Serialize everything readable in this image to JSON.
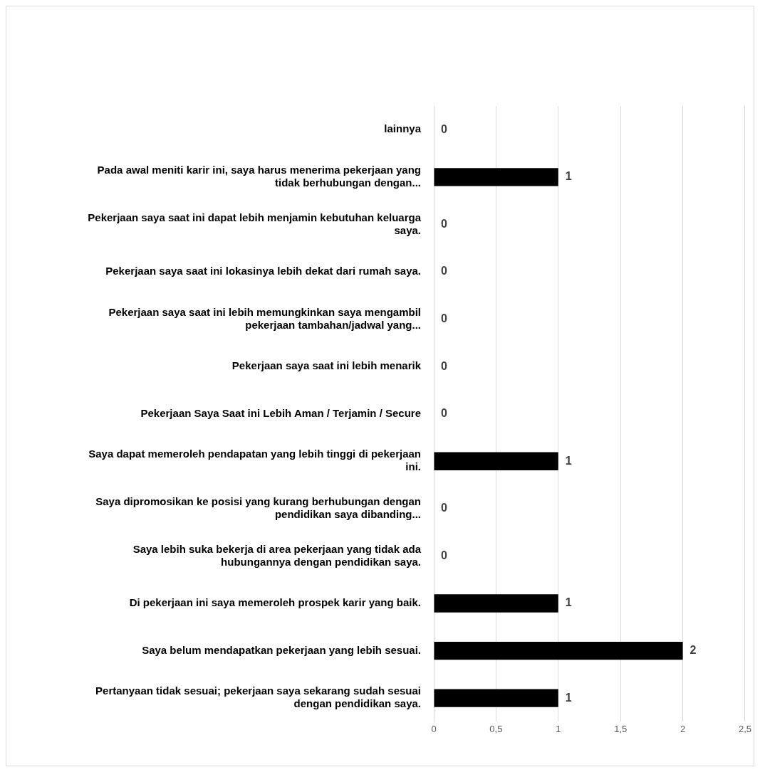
{
  "chart_data": {
    "type": "bar",
    "orientation": "horizontal",
    "categories": [
      "lainnya",
      "Pada awal meniti karir ini, saya harus menerima pekerjaan yang tidak berhubungan dengan...",
      "Pekerjaan saya saat ini dapat lebih menjamin kebutuhan keluarga saya.",
      "Pekerjaan saya saat ini lokasinya lebih dekat dari rumah saya.",
      "Pekerjaan saya saat ini lebih memungkinkan saya mengambil pekerjaan tambahan/jadwal yang...",
      "Pekerjaan saya saat ini lebih menarik",
      "Pekerjaan Saya Saat ini Lebih Aman / Terjamin / Secure",
      "Saya dapat memeroleh pendapatan yang lebih tinggi di pekerjaan ini.",
      "Saya dipromosikan ke posisi yang kurang berhubungan dengan pendidikan saya dibanding...",
      "Saya lebih suka bekerja di area pekerjaan yang tidak ada hubungannya dengan pendidikan saya.",
      "Di pekerjaan ini saya memeroleh prospek karir yang baik.",
      "Saya belum mendapatkan pekerjaan yang lebih sesuai.",
      "Pertanyaan tidak sesuai; pekerjaan saya sekarang sudah sesuai dengan pendidikan saya."
    ],
    "values": [
      0,
      1,
      0,
      0,
      0,
      0,
      0,
      1,
      0,
      0,
      1,
      2,
      1
    ],
    "color": "#000000",
    "xlim": [
      0,
      2.5
    ],
    "xticks": [
      0,
      {
        "value": 0.5,
        "label": "0,5"
      },
      1,
      {
        "value": 1.5,
        "label": "1,5"
      },
      2,
      {
        "value": 2.5,
        "label": "2,5"
      }
    ],
    "grid": "x",
    "data_labels": true,
    "legend": false
  }
}
